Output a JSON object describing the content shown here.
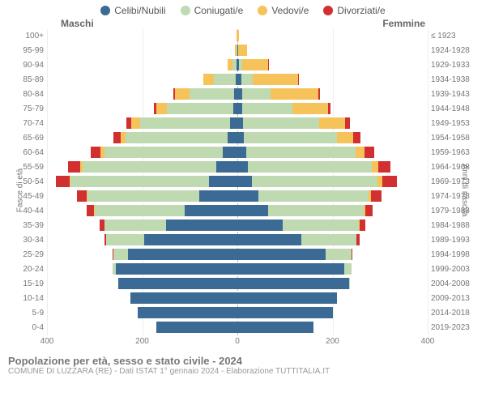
{
  "legend": [
    {
      "label": "Celibi/Nubili",
      "color": "#3b6a95"
    },
    {
      "label": "Coniugati/e",
      "color": "#bfd9b1"
    },
    {
      "label": "Vedovi/e",
      "color": "#f6c35a"
    },
    {
      "label": "Divorziati/e",
      "color": "#d23030"
    }
  ],
  "headers": {
    "male": "Maschi",
    "female": "Femmine"
  },
  "axis_labels": {
    "left": "Fasce di età",
    "right": "Anni di nascita"
  },
  "colors": {
    "single": "#3b6a95",
    "married": "#bfd9b1",
    "widowed": "#f6c35a",
    "divorced": "#d23030",
    "grid": "#eeeeee",
    "center": "#bbbbbb",
    "text": "#777777",
    "bg": "#ffffff"
  },
  "x_axis": {
    "max": 400,
    "ticks": [
      400,
      200,
      0,
      200,
      400
    ]
  },
  "footer": {
    "title": "Popolazione per età, sesso e stato civile - 2024",
    "subtitle": "COMUNE DI LUZZARA (RE) - Dati ISTAT 1° gennaio 2024 - Elaborazione TUTTITALIA.IT"
  },
  "rows": [
    {
      "age": "100+",
      "year": "≤ 1923",
      "m": {
        "single": 0,
        "married": 0,
        "widowed": 1,
        "divorced": 0
      },
      "f": {
        "single": 0,
        "married": 0,
        "widowed": 3,
        "divorced": 0
      }
    },
    {
      "age": "95-99",
      "year": "1924-1928",
      "m": {
        "single": 0,
        "married": 2,
        "widowed": 3,
        "divorced": 0
      },
      "f": {
        "single": 1,
        "married": 1,
        "widowed": 18,
        "divorced": 0
      }
    },
    {
      "age": "90-94",
      "year": "1929-1933",
      "m": {
        "single": 1,
        "married": 10,
        "widowed": 10,
        "divorced": 0
      },
      "f": {
        "single": 4,
        "married": 6,
        "widowed": 55,
        "divorced": 1
      }
    },
    {
      "age": "85-89",
      "year": "1934-1938",
      "m": {
        "single": 4,
        "married": 45,
        "widowed": 22,
        "divorced": 1
      },
      "f": {
        "single": 8,
        "married": 25,
        "widowed": 95,
        "divorced": 2
      }
    },
    {
      "age": "80-84",
      "year": "1939-1943",
      "m": {
        "single": 6,
        "married": 95,
        "widowed": 30,
        "divorced": 3
      },
      "f": {
        "single": 10,
        "married": 60,
        "widowed": 100,
        "divorced": 4
      }
    },
    {
      "age": "75-79",
      "year": "1944-1948",
      "m": {
        "single": 8,
        "married": 140,
        "widowed": 22,
        "divorced": 5
      },
      "f": {
        "single": 10,
        "married": 105,
        "widowed": 75,
        "divorced": 6
      }
    },
    {
      "age": "70-74",
      "year": "1949-1953",
      "m": {
        "single": 15,
        "married": 190,
        "widowed": 18,
        "divorced": 10
      },
      "f": {
        "single": 12,
        "married": 160,
        "widowed": 55,
        "divorced": 10
      }
    },
    {
      "age": "65-69",
      "year": "1954-1958",
      "m": {
        "single": 20,
        "married": 215,
        "widowed": 10,
        "divorced": 15
      },
      "f": {
        "single": 14,
        "married": 195,
        "widowed": 35,
        "divorced": 14
      }
    },
    {
      "age": "60-64",
      "year": "1959-1963",
      "m": {
        "single": 30,
        "married": 250,
        "widowed": 8,
        "divorced": 20
      },
      "f": {
        "single": 18,
        "married": 230,
        "widowed": 20,
        "divorced": 20
      }
    },
    {
      "age": "55-59",
      "year": "1964-1968",
      "m": {
        "single": 45,
        "married": 280,
        "widowed": 5,
        "divorced": 25
      },
      "f": {
        "single": 22,
        "married": 260,
        "widowed": 15,
        "divorced": 25
      }
    },
    {
      "age": "50-54",
      "year": "1969-1973",
      "m": {
        "single": 60,
        "married": 290,
        "widowed": 3,
        "divorced": 28
      },
      "f": {
        "single": 30,
        "married": 265,
        "widowed": 10,
        "divorced": 30
      }
    },
    {
      "age": "45-49",
      "year": "1974-1978",
      "m": {
        "single": 80,
        "married": 235,
        "widowed": 2,
        "divorced": 20
      },
      "f": {
        "single": 45,
        "married": 230,
        "widowed": 6,
        "divorced": 22
      }
    },
    {
      "age": "40-44",
      "year": "1979-1983",
      "m": {
        "single": 110,
        "married": 190,
        "widowed": 1,
        "divorced": 15
      },
      "f": {
        "single": 65,
        "married": 200,
        "widowed": 4,
        "divorced": 16
      }
    },
    {
      "age": "35-39",
      "year": "1984-1988",
      "m": {
        "single": 150,
        "married": 130,
        "widowed": 0,
        "divorced": 10
      },
      "f": {
        "single": 95,
        "married": 160,
        "widowed": 2,
        "divorced": 12
      }
    },
    {
      "age": "30-34",
      "year": "1989-1993",
      "m": {
        "single": 195,
        "married": 80,
        "widowed": 0,
        "divorced": 5
      },
      "f": {
        "single": 135,
        "married": 115,
        "widowed": 1,
        "divorced": 6
      }
    },
    {
      "age": "25-29",
      "year": "1994-1998",
      "m": {
        "single": 230,
        "married": 30,
        "widowed": 0,
        "divorced": 2
      },
      "f": {
        "single": 185,
        "married": 55,
        "widowed": 0,
        "divorced": 2
      }
    },
    {
      "age": "20-24",
      "year": "1999-2003",
      "m": {
        "single": 255,
        "married": 8,
        "widowed": 0,
        "divorced": 0
      },
      "f": {
        "single": 225,
        "married": 15,
        "widowed": 0,
        "divorced": 0
      }
    },
    {
      "age": "15-19",
      "year": "2004-2008",
      "m": {
        "single": 250,
        "married": 0,
        "widowed": 0,
        "divorced": 0
      },
      "f": {
        "single": 235,
        "married": 1,
        "widowed": 0,
        "divorced": 0
      }
    },
    {
      "age": "10-14",
      "year": "2009-2013",
      "m": {
        "single": 225,
        "married": 0,
        "widowed": 0,
        "divorced": 0
      },
      "f": {
        "single": 210,
        "married": 0,
        "widowed": 0,
        "divorced": 0
      }
    },
    {
      "age": "5-9",
      "year": "2014-2018",
      "m": {
        "single": 210,
        "married": 0,
        "widowed": 0,
        "divorced": 0
      },
      "f": {
        "single": 200,
        "married": 0,
        "widowed": 0,
        "divorced": 0
      }
    },
    {
      "age": "0-4",
      "year": "2019-2023",
      "m": {
        "single": 170,
        "married": 0,
        "widowed": 0,
        "divorced": 0
      },
      "f": {
        "single": 160,
        "married": 0,
        "widowed": 0,
        "divorced": 0
      }
    }
  ]
}
